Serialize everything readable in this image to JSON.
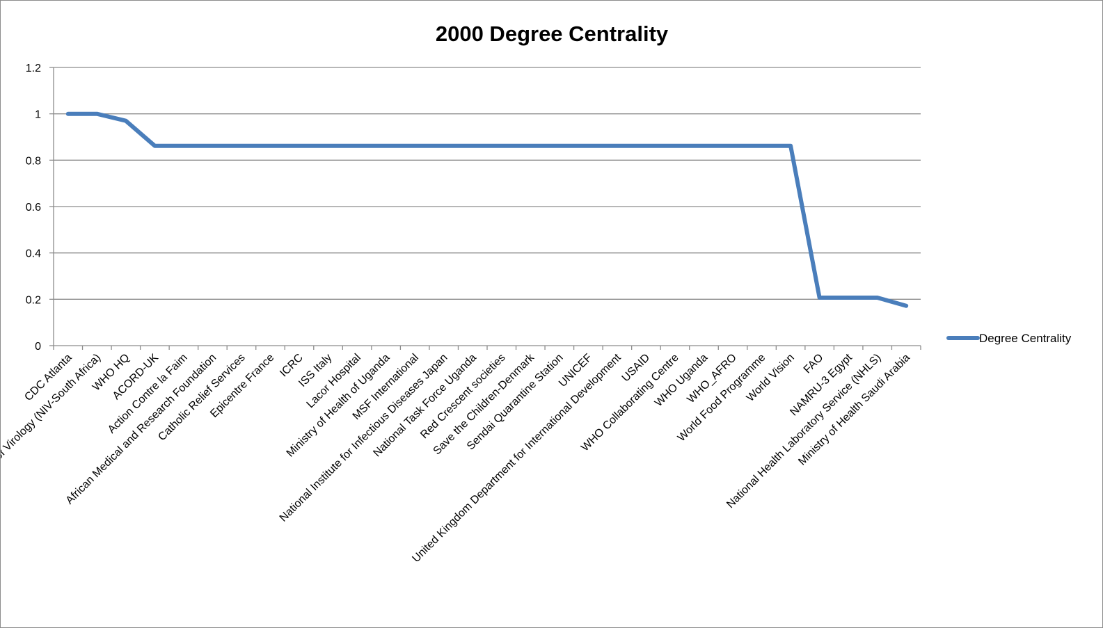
{
  "chart_data": {
    "type": "line",
    "title": "2000 Degree Centrality",
    "xlabel": "",
    "ylabel": "",
    "ylim": [
      0,
      1.2
    ],
    "yticks": [
      "0",
      "0.2",
      "0.4",
      "0.6",
      "0.8",
      "1",
      "1.2"
    ],
    "grid": true,
    "legend_position": "right",
    "categories": [
      "CDC Atlanta",
      "National Institute of Virology (NIV-South Africa)",
      "WHO HQ",
      "ACORD-UK",
      "Action Contre la Faim",
      "African Medical and Research Foundation",
      "Catholic Relief Services",
      "Epicentre France",
      "ICRC",
      "ISS Italy",
      "Lacor Hospital",
      "Ministry of Health of Uganda",
      "MSF International",
      "National Institute for Infectious Diseases Japan",
      "National Task Force Uganda",
      "Red Crescent societies",
      "Save the Children-Denmark",
      "Sendai Quarantine Station",
      "UNICEF",
      "United Kingdom Department for International Development",
      "USAID",
      "WHO Collaborating Centre",
      "WHO Uganda",
      "WHO_AFRO",
      "World Food Programme",
      "World Vision",
      "FAO",
      "NAMRU-3 Egypt",
      "National Health Laboratory Service (NHLS)",
      "Ministry of Health Saudi Arabia"
    ],
    "series": [
      {
        "name": "Degree Centrality",
        "color": "#4a7ebb",
        "values": [
          1,
          1,
          0.97,
          0.862,
          0.862,
          0.862,
          0.862,
          0.862,
          0.862,
          0.862,
          0.862,
          0.862,
          0.862,
          0.862,
          0.862,
          0.862,
          0.862,
          0.862,
          0.862,
          0.862,
          0.862,
          0.862,
          0.862,
          0.862,
          0.862,
          0.862,
          0.207,
          0.207,
          0.207,
          0.172
        ]
      }
    ]
  }
}
